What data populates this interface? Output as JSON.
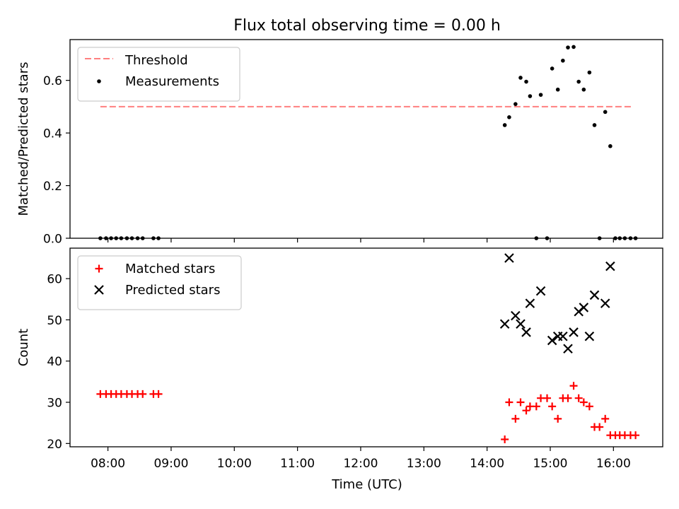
{
  "chart_data": {
    "type": "scatter",
    "title": "Flux total observing time = 0.00 h",
    "xlabel": "Time (UTC)",
    "x_unit": "hour of day (UTC)",
    "xlim": [
      7.4,
      16.78
    ],
    "x_ticks": [
      {
        "value": 8,
        "label": "08:00"
      },
      {
        "value": 9,
        "label": "09:00"
      },
      {
        "value": 10,
        "label": "10:00"
      },
      {
        "value": 11,
        "label": "11:00"
      },
      {
        "value": 12,
        "label": "12:00"
      },
      {
        "value": 13,
        "label": "13:00"
      },
      {
        "value": 14,
        "label": "14:00"
      },
      {
        "value": 15,
        "label": "15:00"
      },
      {
        "value": 16,
        "label": "16:00"
      }
    ],
    "panels": [
      {
        "ylabel": "Matched/Predicted stars",
        "ylim": [
          0,
          0.755
        ],
        "y_ticks": [
          {
            "value": 0.0,
            "label": "0.0"
          },
          {
            "value": 0.2,
            "label": "0.2"
          },
          {
            "value": 0.4,
            "label": "0.4"
          },
          {
            "value": 0.6,
            "label": "0.6"
          }
        ],
        "legend_position": "top-left",
        "threshold": {
          "name": "Threshold",
          "value": 0.5,
          "x_range": [
            7.88,
            16.3
          ],
          "color": "#ff7f7f"
        },
        "series": [
          {
            "name": "Measurements",
            "marker": "dot",
            "color": "#000000",
            "x": [
              7.88,
              7.97,
              8.05,
              8.13,
              8.21,
              8.3,
              8.38,
              8.47,
              8.55,
              8.72,
              8.8,
              14.28,
              14.35,
              14.45,
              14.53,
              14.62,
              14.68,
              14.78,
              14.85,
              14.95,
              15.03,
              15.12,
              15.2,
              15.28,
              15.37,
              15.45,
              15.53,
              15.62,
              15.7,
              15.78,
              15.87,
              15.95,
              16.03,
              16.1,
              16.18,
              16.27,
              16.35
            ],
            "y": [
              0.0,
              0.0,
              0.0,
              0.0,
              0.0,
              0.0,
              0.0,
              0.0,
              0.0,
              0.0,
              0.0,
              0.43,
              0.46,
              0.51,
              0.61,
              0.595,
              0.54,
              0.0,
              0.545,
              0.0,
              0.645,
              0.565,
              0.675,
              0.725,
              0.727,
              0.595,
              0.565,
              0.63,
              0.43,
              0.0,
              0.48,
              0.35,
              0.0,
              0.0,
              0.0,
              0.0,
              0.0
            ]
          }
        ]
      },
      {
        "ylabel": "Count",
        "ylim": [
          19.2,
          67.4
        ],
        "y_ticks": [
          {
            "value": 20,
            "label": "20"
          },
          {
            "value": 30,
            "label": "30"
          },
          {
            "value": 40,
            "label": "40"
          },
          {
            "value": 50,
            "label": "50"
          },
          {
            "value": 60,
            "label": "60"
          }
        ],
        "legend_position": "top-left",
        "series": [
          {
            "name": "Matched stars",
            "marker": "plus",
            "color": "#ff0000",
            "x": [
              7.88,
              7.97,
              8.05,
              8.13,
              8.21,
              8.3,
              8.38,
              8.47,
              8.55,
              8.72,
              8.8,
              14.28,
              14.35,
              14.45,
              14.53,
              14.62,
              14.68,
              14.78,
              14.85,
              14.95,
              15.03,
              15.12,
              15.2,
              15.28,
              15.37,
              15.45,
              15.53,
              15.62,
              15.7,
              15.78,
              15.87,
              15.95,
              16.03,
              16.1,
              16.18,
              16.27,
              16.35
            ],
            "y": [
              32,
              32,
              32,
              32,
              32,
              32,
              32,
              32,
              32,
              32,
              32,
              21,
              30,
              26,
              30,
              28,
              29,
              29,
              31,
              31,
              29,
              26,
              31,
              31,
              34,
              31,
              30,
              29,
              24,
              24,
              26,
              22,
              22,
              22,
              22,
              22,
              22
            ]
          },
          {
            "name": "Predicted stars",
            "marker": "x",
            "color": "#000000",
            "x": [
              14.28,
              14.35,
              14.45,
              14.53,
              14.62,
              14.68,
              14.85,
              15.03,
              15.12,
              15.2,
              15.28,
              15.37,
              15.45,
              15.53,
              15.62,
              15.7,
              15.87,
              15.95
            ],
            "y": [
              49,
              65,
              51,
              49,
              47,
              54,
              57,
              45,
              46,
              46,
              43,
              47,
              52,
              53,
              46,
              56,
              54,
              63
            ]
          }
        ]
      }
    ]
  }
}
